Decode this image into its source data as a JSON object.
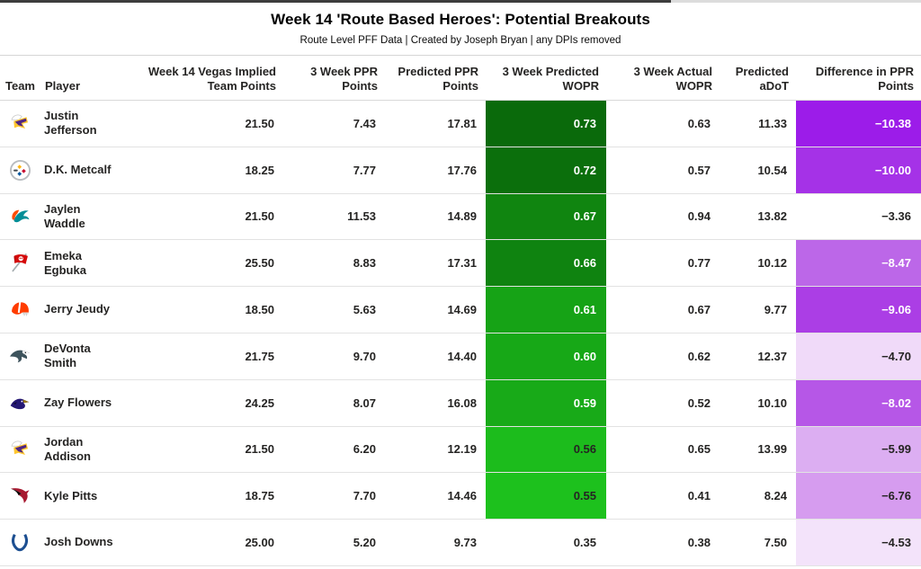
{
  "style": {
    "scrollbar_thumb": "#3d3d3d",
    "scrollbar_track": "#dcdcdc",
    "row_divider": "#e2e2e2",
    "header_text": "#252423",
    "green_scale_dark": "#0a6a0b",
    "green_scale_bright": "#1dc11d",
    "purple_scale_dark": "#9c1ce9",
    "purple_scale_light": "#f3e3fa"
  },
  "chart_data": {
    "type": "table",
    "title": "Week 14 'Route Based Heroes': Potential Breakouts",
    "subtitle": "Route Level PFF Data | Created by Joseph Bryan | any DPIs removed",
    "legend_position": "none",
    "columns": [
      {
        "key": "team",
        "label": "Team",
        "align": "left"
      },
      {
        "key": "player",
        "label": "Player",
        "align": "left"
      },
      {
        "key": "vegas",
        "label": "Week 14 Vegas Implied Team Points",
        "align": "right"
      },
      {
        "key": "ppr3",
        "label": "3 Week PPR Points",
        "align": "right"
      },
      {
        "key": "pred_ppr",
        "label": "Predicted PPR Points",
        "align": "right"
      },
      {
        "key": "wopr_pred",
        "label": "3 Week Predicted WOPR",
        "align": "right"
      },
      {
        "key": "wopr_act",
        "label": "3 Week Actual WOPR",
        "align": "right"
      },
      {
        "key": "adot",
        "label": "Predicted aDoT",
        "align": "right"
      },
      {
        "key": "diff",
        "label": "Difference in PPR Points",
        "align": "right"
      }
    ],
    "rows": [
      {
        "team_icon": "vikings-logo",
        "team": "Minnesota Vikings",
        "player": "Justin\nJefferson",
        "vegas": "21.50",
        "ppr3": "7.43",
        "pred_ppr": "17.81",
        "wopr_pred": "0.73",
        "wopr_bg": "#0a6a0b",
        "wopr_fg": "#ffffff",
        "wopr_act": "0.63",
        "adot": "11.33",
        "diff": "−10.38",
        "diff_bg": "#9c1ce9",
        "diff_fg": "#ffffff"
      },
      {
        "team_icon": "steelers-logo",
        "team": "Pittsburgh Steelers",
        "player": "D.K. Metcalf",
        "vegas": "18.25",
        "ppr3": "7.77",
        "pred_ppr": "17.76",
        "wopr_pred": "0.72",
        "wopr_bg": "#0b6f0c",
        "wopr_fg": "#ffffff",
        "wopr_act": "0.57",
        "adot": "10.54",
        "diff": "−10.00",
        "diff_bg": "#a532e7",
        "diff_fg": "#ffffff"
      },
      {
        "team_icon": "dolphins-logo",
        "team": "Miami Dolphins",
        "player": "Jaylen\nWaddle",
        "vegas": "21.50",
        "ppr3": "11.53",
        "pred_ppr": "14.89",
        "wopr_pred": "0.67",
        "wopr_bg": "#108510",
        "wopr_fg": "#ffffff",
        "wopr_act": "0.94",
        "adot": "13.82",
        "diff": "−3.36",
        "diff_bg": null,
        "diff_fg": null
      },
      {
        "team_icon": "buccaneers-logo",
        "team": "Tampa Bay Buccaneers",
        "player": "Emeka\nEgbuka",
        "vegas": "25.50",
        "ppr3": "8.83",
        "pred_ppr": "17.31",
        "wopr_pred": "0.66",
        "wopr_bg": "#0f8310",
        "wopr_fg": "#ffffff",
        "wopr_act": "0.77",
        "adot": "10.12",
        "diff": "−8.47",
        "diff_bg": "#bc67e8",
        "diff_fg": "#ffffff"
      },
      {
        "team_icon": "browns-logo",
        "team": "Cleveland Browns",
        "player": "Jerry Jeudy",
        "vegas": "18.50",
        "ppr3": "5.63",
        "pred_ppr": "14.69",
        "wopr_pred": "0.61",
        "wopr_bg": "#16a316",
        "wopr_fg": "#ffffff",
        "wopr_act": "0.67",
        "adot": "9.77",
        "diff": "−9.06",
        "diff_bg": "#ab3ee5",
        "diff_fg": "#ffffff"
      },
      {
        "team_icon": "eagles-logo",
        "team": "Philadelphia Eagles",
        "player": "DeVonta\nSmith",
        "vegas": "21.75",
        "ppr3": "9.70",
        "pred_ppr": "14.40",
        "wopr_pred": "0.60",
        "wopr_bg": "#17a817",
        "wopr_fg": "#ffffff",
        "wopr_act": "0.62",
        "adot": "12.37",
        "diff": "−4.70",
        "diff_bg": "#f0daf9",
        "diff_fg": "#252423"
      },
      {
        "team_icon": "ravens-logo",
        "team": "Baltimore Ravens",
        "player": "Zay Flowers",
        "vegas": "24.25",
        "ppr3": "8.07",
        "pred_ppr": "16.08",
        "wopr_pred": "0.59",
        "wopr_bg": "#18aa18",
        "wopr_fg": "#ffffff",
        "wopr_act": "0.52",
        "adot": "10.10",
        "diff": "−8.02",
        "diff_bg": "#b657e7",
        "diff_fg": "#ffffff"
      },
      {
        "team_icon": "vikings-logo",
        "team": "Minnesota Vikings",
        "player": "Jordan\nAddison",
        "vegas": "21.50",
        "ppr3": "6.20",
        "pred_ppr": "12.19",
        "wopr_pred": "0.56",
        "wopr_bg": "#1cbc1c",
        "wopr_fg": "#252423",
        "wopr_act": "0.65",
        "adot": "13.99",
        "diff": "−5.99",
        "diff_bg": "#dcaef2",
        "diff_fg": "#252423"
      },
      {
        "team_icon": "falcons-logo",
        "team": "Atlanta Falcons",
        "player": "Kyle Pitts",
        "vegas": "18.75",
        "ppr3": "7.70",
        "pred_ppr": "14.46",
        "wopr_pred": "0.55",
        "wopr_bg": "#1dc11d",
        "wopr_fg": "#252423",
        "wopr_act": "0.41",
        "adot": "8.24",
        "diff": "−6.76",
        "diff_bg": "#d69cef",
        "diff_fg": "#252423"
      },
      {
        "team_icon": "colts-logo",
        "team": "Indianapolis Colts",
        "player": "Josh Downs",
        "vegas": "25.00",
        "ppr3": "5.20",
        "pred_ppr": "9.73",
        "wopr_pred": "0.35",
        "wopr_bg": null,
        "wopr_fg": null,
        "wopr_act": "0.38",
        "adot": "7.50",
        "diff": "−4.53",
        "diff_bg": "#f3e3fa",
        "diff_fg": "#252423"
      }
    ],
    "conditional_formatting": {
      "wopr_pred": {
        "scale": "green",
        "high_value_color": "#0a6a0b",
        "low_value_color": "#1dc11d"
      },
      "diff": {
        "scale": "purple",
        "low_value_color": "#9c1ce9",
        "high_value_color": "#f3e3fa"
      }
    }
  }
}
